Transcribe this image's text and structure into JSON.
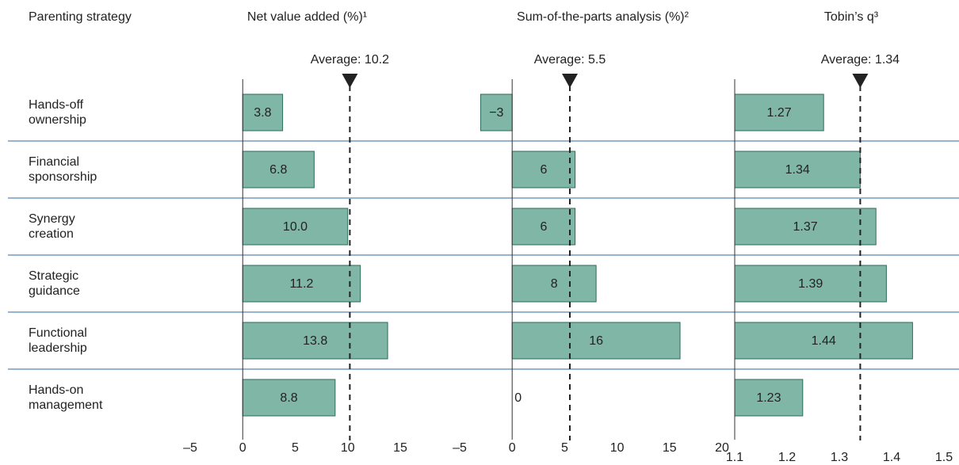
{
  "row_header": "Parenting strategy",
  "categories": [
    "Hands-off\nownership",
    "Financial\nsponsorship",
    "Synergy\ncreation",
    "Strategic\nguidance",
    "Functional\nleadership",
    "Hands-on\nmanagement"
  ],
  "chart_data": [
    {
      "type": "bar",
      "title": "Net value added (%)¹",
      "color": "#80b6a6",
      "values": [
        3.8,
        6.8,
        10.0,
        11.2,
        13.8,
        8.8
      ],
      "value_labels": [
        "3.8",
        "6.8",
        "10.0",
        "11.2",
        "13.8",
        "8.8"
      ],
      "average": 10.2,
      "average_label": "Average: 10.2",
      "xlim": [
        -5,
        15
      ],
      "xticks": [
        {
          "value": -5,
          "label": "–5"
        },
        0,
        5,
        10,
        15
      ]
    },
    {
      "type": "bar",
      "title": "Sum-of-the-parts analysis (%)²",
      "color": "#80b6a6",
      "values": [
        -3,
        6,
        6,
        8,
        16,
        0
      ],
      "value_labels": [
        "−3",
        "6",
        "6",
        "8",
        "16",
        "0"
      ],
      "average": 5.5,
      "average_label": "Average: 5.5",
      "xlim": [
        -5,
        20
      ],
      "xticks": [
        {
          "value": -5,
          "label": "–5"
        },
        0,
        5,
        10,
        15,
        20
      ]
    },
    {
      "type": "bar",
      "title": "Tobin’s q³",
      "color": "#80b6a6",
      "values": [
        1.27,
        1.34,
        1.37,
        1.39,
        1.44,
        1.23
      ],
      "average": 1.34,
      "average_label": "Average: 1.34",
      "xlim": [
        1.1,
        1.5
      ],
      "xticks": [
        1.1,
        1.2,
        1.3,
        1.4,
        1.5
      ]
    }
  ]
}
